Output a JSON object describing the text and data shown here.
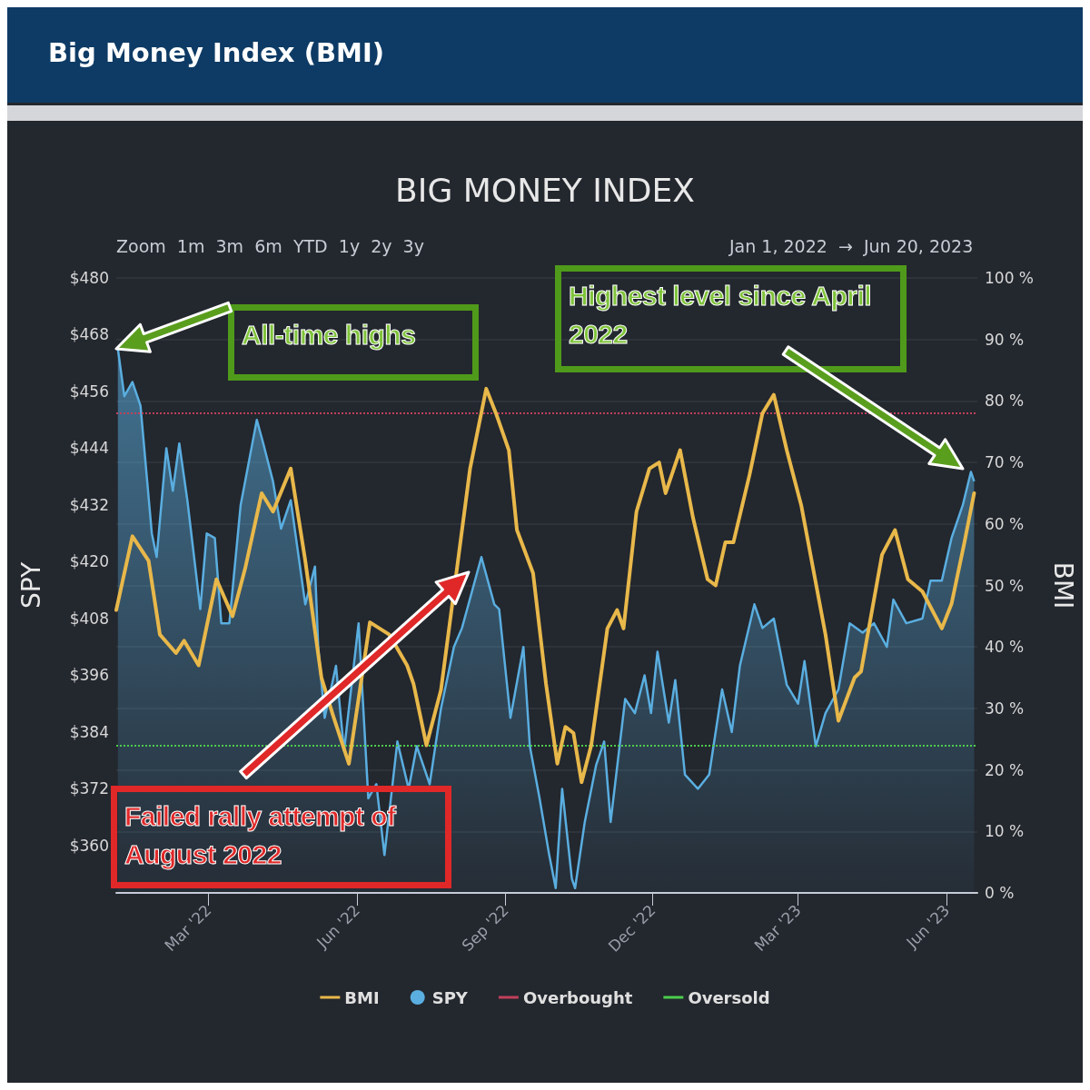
{
  "chart_data": {
    "type": "line",
    "title": "Big Money Index (BMI)",
    "subtitle": "BIG MONEY INDEX",
    "ylabel": "SPY",
    "y2label": "BMI",
    "annotations": [
      "Zoom  1m  3m  6m  YTD  1y  2y  3y",
      "Jan 1, 2022  →  Jun 20, 2023",
      "All-time highs",
      "Highest level since April 2022",
      "Failed rally attempt of August 2022"
    ],
    "xlim": [
      "2022-01-03",
      "2023-06-20"
    ],
    "xticks": [
      {
        "value": "2022-03-01",
        "label": "Mar '22"
      },
      {
        "value": "2022-06-01",
        "label": "Jun '22"
      },
      {
        "value": "2022-09-01",
        "label": "Sep '22"
      },
      {
        "value": "2022-12-01",
        "label": "Dec '22"
      },
      {
        "value": "2023-03-01",
        "label": "Mar '23"
      },
      {
        "value": "2023-06-01",
        "label": "Jun '23"
      }
    ],
    "ylim": [
      350,
      480
    ],
    "yticks": [
      {
        "value": 360,
        "label": "$360"
      },
      {
        "value": 372,
        "label": "$372"
      },
      {
        "value": 384,
        "label": "$384"
      },
      {
        "value": 396,
        "label": "$396"
      },
      {
        "value": 408,
        "label": "$408"
      },
      {
        "value": 420,
        "label": "$420"
      },
      {
        "value": 432,
        "label": "$432"
      },
      {
        "value": 444,
        "label": "$444"
      },
      {
        "value": 456,
        "label": "$456"
      },
      {
        "value": 468,
        "label": "$468"
      },
      {
        "value": 480,
        "label": "$480"
      }
    ],
    "y2lim": [
      0,
      100
    ],
    "y2ticks": [
      {
        "value": 0,
        "label": "0 %"
      },
      {
        "value": 10,
        "label": "10 %"
      },
      {
        "value": 20,
        "label": "20 %"
      },
      {
        "value": 30,
        "label": "30 %"
      },
      {
        "value": 40,
        "label": "40 %"
      },
      {
        "value": 50,
        "label": "50 %"
      },
      {
        "value": 60,
        "label": "60 %"
      },
      {
        "value": 70,
        "label": "70 %"
      },
      {
        "value": 80,
        "label": "80 %"
      },
      {
        "value": 90,
        "label": "90 %"
      },
      {
        "value": 100,
        "label": "100 %"
      }
    ],
    "grid": "y",
    "legend": "bottom",
    "marker": "none",
    "line_style": "solid",
    "ref_lines": [
      {
        "axis": "y2",
        "value": 78,
        "label": "Overbought",
        "color": "#c0405a",
        "line_style": "dotted"
      },
      {
        "axis": "y2",
        "value": 24,
        "label": "Oversold",
        "color": "#4ccc4c",
        "line_style": "dotted"
      }
    ],
    "series": [
      {
        "name": "BMI",
        "type": "line",
        "axis": "y2",
        "color": "#e8b84a",
        "x": [
          "2022-01-03",
          "2022-01-13",
          "2022-01-23",
          "2022-01-30",
          "2022-02-09",
          "2022-02-14",
          "2022-02-23",
          "2022-03-06",
          "2022-03-16",
          "2022-03-24",
          "2022-04-03",
          "2022-04-10",
          "2022-04-21",
          "2022-04-30",
          "2022-05-10",
          "2022-05-17",
          "2022-05-27",
          "2022-06-09",
          "2022-06-21",
          "2022-07-02",
          "2022-07-06",
          "2022-07-14",
          "2022-07-23",
          "2022-08-02",
          "2022-08-10",
          "2022-08-20",
          "2022-08-26",
          "2022-09-03",
          "2022-09-08",
          "2022-09-18",
          "2022-09-26",
          "2022-10-03",
          "2022-10-08",
          "2022-10-13",
          "2022-10-18",
          "2022-10-24",
          "2022-11-03",
          "2022-11-09",
          "2022-11-13",
          "2022-11-21",
          "2022-11-29",
          "2022-12-05",
          "2022-12-09",
          "2022-12-18",
          "2022-12-26",
          "2023-01-04",
          "2023-01-09",
          "2023-01-15",
          "2023-01-20",
          "2023-01-30",
          "2023-02-07",
          "2023-02-14",
          "2023-02-22",
          "2023-03-03",
          "2023-03-18",
          "2023-03-26",
          "2023-04-05",
          "2023-04-09",
          "2023-04-22",
          "2023-04-30",
          "2023-05-08",
          "2023-05-17",
          "2023-05-29",
          "2023-06-04",
          "2023-06-12",
          "2023-06-18"
        ],
        "values": [
          46,
          58,
          54,
          42,
          39,
          41,
          37,
          51,
          45,
          53,
          65,
          62,
          69,
          54,
          35,
          29,
          21,
          44,
          42,
          37,
          34,
          24,
          33,
          53,
          69,
          82,
          78,
          72,
          59,
          52,
          34,
          21,
          27,
          26,
          18,
          24,
          43,
          46,
          43,
          62,
          69,
          70,
          65,
          72,
          61,
          51,
          50,
          57,
          57,
          68,
          78,
          81,
          72,
          63,
          42,
          28,
          35,
          36,
          55,
          59,
          51,
          49,
          43,
          47,
          57,
          65
        ]
      },
      {
        "name": "SPY",
        "type": "area",
        "color": "#5aaee0",
        "x": [
          "2022-01-04",
          "2022-01-08",
          "2022-01-13",
          "2022-01-18",
          "2022-01-25",
          "2022-01-28",
          "2022-02-03",
          "2022-02-07",
          "2022-02-11",
          "2022-02-16",
          "2022-02-24",
          "2022-02-28",
          "2022-03-05",
          "2022-03-09",
          "2022-03-14",
          "2022-03-21",
          "2022-03-31",
          "2022-04-04",
          "2022-04-10",
          "2022-04-15",
          "2022-04-21",
          "2022-04-30",
          "2022-05-06",
          "2022-05-08",
          "2022-05-12",
          "2022-05-19",
          "2022-05-24",
          "2022-06-02",
          "2022-06-08",
          "2022-06-13",
          "2022-06-18",
          "2022-06-26",
          "2022-07-03",
          "2022-07-08",
          "2022-07-16",
          "2022-07-23",
          "2022-07-31",
          "2022-08-05",
          "2022-08-17",
          "2022-08-25",
          "2022-08-28",
          "2022-09-04",
          "2022-09-12",
          "2022-09-16",
          "2022-09-22",
          "2022-09-28",
          "2022-10-02",
          "2022-10-06",
          "2022-10-12",
          "2022-10-14",
          "2022-10-20",
          "2022-10-27",
          "2022-11-01",
          "2022-11-05",
          "2022-11-14",
          "2022-11-20",
          "2022-11-26",
          "2022-11-30",
          "2022-12-04",
          "2022-12-11",
          "2022-12-15",
          "2022-12-21",
          "2022-12-29",
          "2023-01-05",
          "2023-01-13",
          "2023-01-19",
          "2023-01-24",
          "2023-02-02",
          "2023-02-07",
          "2023-02-14",
          "2023-02-22",
          "2023-03-01",
          "2023-03-05",
          "2023-03-12",
          "2023-03-18",
          "2023-03-26",
          "2023-04-02",
          "2023-04-10",
          "2023-04-17",
          "2023-04-25",
          "2023-04-29",
          "2023-05-07",
          "2023-05-17",
          "2023-05-22",
          "2023-05-29",
          "2023-06-04",
          "2023-06-11",
          "2023-06-16",
          "2023-06-18"
        ],
        "values": [
          465,
          455,
          458,
          453,
          426,
          421,
          444,
          435,
          445,
          433,
          410,
          426,
          425,
          407,
          407,
          432,
          450,
          445,
          437,
          427,
          433,
          411,
          419,
          402,
          387,
          398,
          380,
          407,
          370,
          373,
          358,
          382,
          372,
          381,
          373,
          389,
          402,
          406,
          421,
          411,
          410,
          387,
          402,
          381,
          370,
          358,
          351,
          372,
          353,
          351,
          365,
          377,
          382,
          365,
          391,
          388,
          396,
          388,
          401,
          386,
          395,
          375,
          372,
          375,
          393,
          384,
          398,
          411,
          406,
          408,
          394,
          390,
          399,
          381,
          388,
          393,
          407,
          405,
          407,
          402,
          412,
          407,
          408,
          416,
          416,
          425,
          432,
          439,
          437
        ]
      }
    ]
  }
}
